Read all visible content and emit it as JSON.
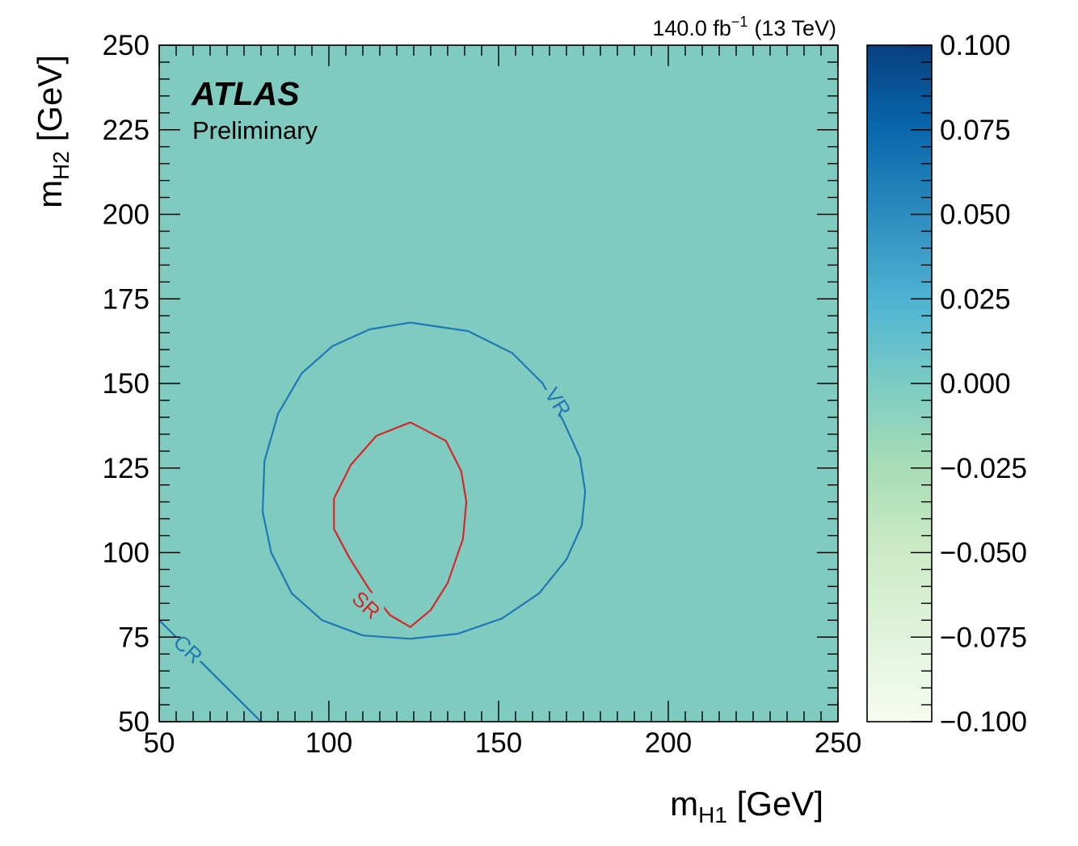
{
  "chart_data": {
    "type": "heatmap",
    "experiment": "ATLAS",
    "status": "Preliminary",
    "luminosity": {
      "value": "140.0 fb",
      "exponent": "−1",
      "energy": "(13 TeV)"
    },
    "xlabel": {
      "main": "m",
      "sub": "H1",
      "unit": " [GeV]"
    },
    "ylabel": {
      "main": "m",
      "sub": "H2",
      "unit": " [GeV]"
    },
    "xlim": [
      50,
      250
    ],
    "ylim": [
      50,
      250
    ],
    "x_ticks": [
      "50",
      "100",
      "150",
      "200",
      "250"
    ],
    "y_ticks": [
      "50",
      "75",
      "100",
      "125",
      "150",
      "175",
      "200",
      "225",
      "250"
    ],
    "fill_value": 0.0,
    "fill_color": "#7fcbc0",
    "colorbar": {
      "range": [
        -0.1,
        0.1
      ],
      "ticks": [
        "0.100",
        "0.075",
        "0.050",
        "0.025",
        "0.000",
        "−0.025",
        "−0.050",
        "−0.075",
        "−0.100"
      ],
      "colors": [
        "#f7fcf0",
        "#e0f3db",
        "#ccebc5",
        "#a8ddb5",
        "#7bccc4",
        "#4eb3d3",
        "#2b8cbe",
        "#0868ac",
        "#084081"
      ]
    },
    "regions": [
      {
        "name": "SR",
        "color": "#d62728",
        "points": [
          [
            124.0,
            138.5
          ],
          [
            114.0,
            134.5
          ],
          [
            106.5,
            126.0
          ],
          [
            101.5,
            116.0
          ],
          [
            101.5,
            107.0
          ],
          [
            106.0,
            98.5
          ],
          [
            112.0,
            89.0
          ],
          [
            118.0,
            81.5
          ],
          [
            124.0,
            78.0
          ],
          [
            130.0,
            83.0
          ],
          [
            135.0,
            91.0
          ],
          [
            139.5,
            104.0
          ],
          [
            140.5,
            115.0
          ],
          [
            139.0,
            124.0
          ],
          [
            134.5,
            133.0
          ],
          [
            124.0,
            138.5
          ]
        ],
        "label_at": [
          111.0,
          84.5
        ]
      },
      {
        "name": "VR",
        "color": "#1f77b4",
        "points": [
          [
            124.0,
            168.0
          ],
          [
            112.0,
            166.0
          ],
          [
            101.0,
            161.0
          ],
          [
            92.0,
            153.0
          ],
          [
            85.0,
            141.0
          ],
          [
            81.0,
            127.0
          ],
          [
            80.5,
            112.0
          ],
          [
            83.0,
            100.0
          ],
          [
            89.0,
            88.0
          ],
          [
            98.0,
            80.0
          ],
          [
            110.0,
            75.5
          ],
          [
            124.0,
            74.5
          ],
          [
            138.0,
            76.0
          ],
          [
            151.0,
            80.5
          ],
          [
            162.0,
            88.0
          ],
          [
            170.0,
            98.0
          ],
          [
            174.5,
            108.0
          ],
          [
            175.5,
            118.0
          ],
          [
            174.0,
            128.0
          ],
          [
            169.0,
            139.0
          ],
          [
            163.0,
            150.0
          ],
          [
            154.0,
            159.0
          ],
          [
            141.0,
            165.5
          ],
          [
            124.0,
            168.0
          ]
        ],
        "label_at": [
          167.5,
          144.5
        ]
      },
      {
        "name": "CR",
        "color": "#1f77b4",
        "points": [
          [
            50.0,
            80.0
          ],
          [
            80.0,
            50.0
          ]
        ],
        "label_at": [
          58.5,
          71.5
        ]
      }
    ]
  }
}
